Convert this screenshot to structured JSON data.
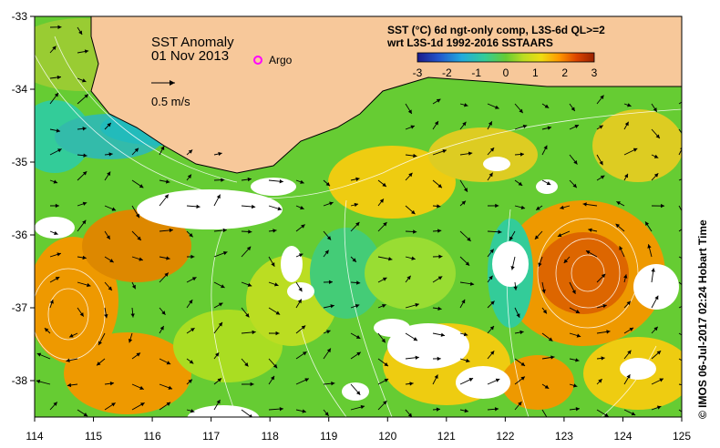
{
  "map": {
    "title": "SST Anomaly",
    "date": "01 Nov 2013",
    "argo_label": "Argo",
    "arrow_scale_label": "0.5 m/s",
    "legend": {
      "line1": "SST (°C) 6d ngt-only comp, L3S-6d QL>=2",
      "line2": "wrt L3S-1d 1992-2016 SSTAARS",
      "ticks": [
        "-3",
        "-2",
        "-1",
        "0",
        "1",
        "2",
        "3"
      ],
      "colors": [
        "#1a1a8a",
        "#2255cc",
        "#22aadd",
        "#33cc99",
        "#66cc33",
        "#bbdd22",
        "#eedd11",
        "#ff9900",
        "#dd4400",
        "#992200"
      ]
    },
    "x_ticks": [
      "114",
      "115",
      "116",
      "117",
      "118",
      "119",
      "120",
      "121",
      "122",
      "123",
      "124",
      "125"
    ],
    "y_ticks": [
      "-33",
      "-34",
      "-35",
      "-36",
      "-37",
      "-38"
    ],
    "credit": "©  IMOS 06-Jul-2017 02:24 Hobart Time",
    "colors": {
      "land": "#f7c89a",
      "ocean_base": "#66cc33",
      "argo": "#ff00ff"
    }
  }
}
